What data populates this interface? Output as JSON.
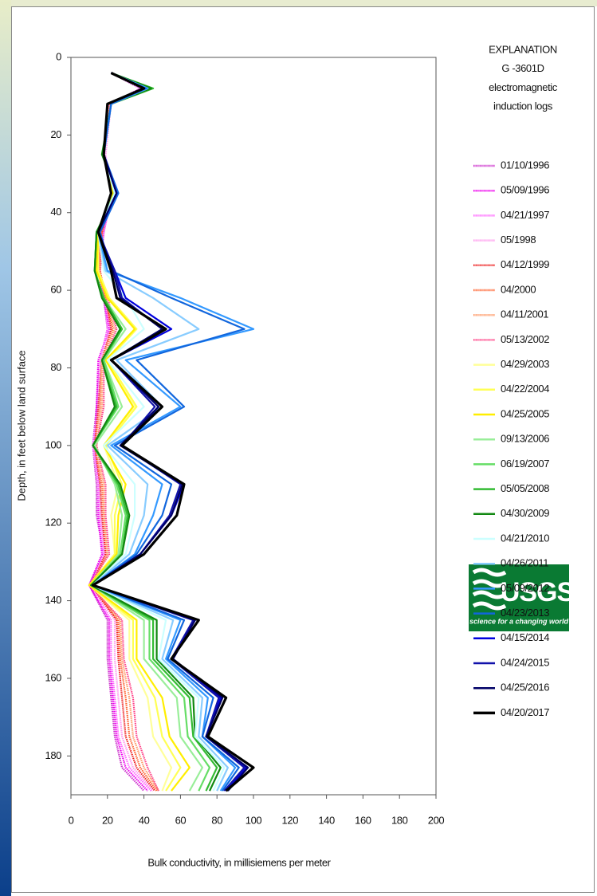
{
  "chart_data": {
    "type": "line",
    "x_label": "Bulk conductivity, in millisiemens per meter",
    "y_label": "Depth, in feet below land surface",
    "legend_title": [
      "EXPLANATION",
      "G -3601D",
      "electromagnetic",
      "induction logs"
    ],
    "xlim": [
      0,
      200
    ],
    "xticks": [
      0,
      20,
      40,
      60,
      80,
      100,
      120,
      140,
      160,
      180,
      200
    ],
    "ylim": [
      0,
      190
    ],
    "yticks": [
      0,
      20,
      40,
      60,
      80,
      100,
      120,
      140,
      160,
      180
    ],
    "invert_y": true,
    "y": [
      4,
      8,
      12,
      25,
      35,
      45,
      55,
      62,
      70,
      78,
      90,
      100,
      110,
      118,
      128,
      136,
      145,
      155,
      165,
      175,
      183,
      189
    ],
    "series": [
      {
        "name": "01/10/1996",
        "color": "#cc33cc",
        "style": "dotted",
        "values": [
          22,
          38,
          22,
          18,
          22,
          18,
          16,
          18,
          20,
          16,
          14,
          12,
          14,
          14,
          18,
          10,
          20,
          20,
          22,
          24,
          28,
          40
        ]
      },
      {
        "name": "05/09/1996",
        "color": "#ee00ee",
        "style": "dotted",
        "values": [
          22,
          40,
          22,
          18,
          22,
          17,
          15,
          18,
          21,
          15,
          14,
          13,
          15,
          15,
          17,
          10,
          21,
          21,
          23,
          25,
          30,
          42
        ]
      },
      {
        "name": "04/21/1997",
        "color": "#ff66ff",
        "style": "dotted",
        "values": [
          22,
          39,
          21,
          18,
          23,
          18,
          15,
          19,
          20,
          16,
          15,
          12,
          15,
          16,
          18,
          11,
          22,
          22,
          24,
          26,
          32,
          44
        ]
      },
      {
        "name": "05/1998",
        "color": "#ff99ee",
        "style": "dotted",
        "values": [
          22,
          40,
          22,
          19,
          22,
          17,
          16,
          18,
          22,
          16,
          15,
          13,
          16,
          16,
          19,
          11,
          24,
          24,
          26,
          28,
          34,
          45
        ]
      },
      {
        "name": "04/12/1999",
        "color": "#ee2222",
        "style": "dotted",
        "values": [
          22,
          41,
          22,
          18,
          22,
          17,
          15,
          19,
          22,
          17,
          15,
          13,
          16,
          17,
          19,
          11,
          25,
          26,
          28,
          30,
          36,
          46
        ]
      },
      {
        "name": "04/2000",
        "color": "#ff6633",
        "style": "dotted",
        "values": [
          22,
          40,
          22,
          18,
          23,
          17,
          16,
          19,
          23,
          17,
          16,
          13,
          17,
          18,
          20,
          11,
          26,
          27,
          30,
          32,
          38,
          47
        ]
      },
      {
        "name": "04/11/2001",
        "color": "#ff9966",
        "style": "dotted",
        "values": [
          22,
          41,
          21,
          18,
          22,
          16,
          15,
          19,
          24,
          17,
          17,
          14,
          18,
          18,
          20,
          11,
          27,
          28,
          32,
          34,
          40,
          48
        ]
      },
      {
        "name": "05/13/2002",
        "color": "#ff4488",
        "style": "dotted",
        "values": [
          22,
          42,
          22,
          18,
          23,
          16,
          15,
          20,
          25,
          18,
          18,
          14,
          19,
          19,
          21,
          10,
          28,
          29,
          34,
          36,
          42,
          48
        ]
      },
      {
        "name": "04/29/2003",
        "color": "#ffff99",
        "style": "solid",
        "values": [
          22,
          42,
          22,
          18,
          22,
          15,
          15,
          20,
          35,
          20,
          35,
          18,
          26,
          22,
          24,
          10,
          32,
          32,
          42,
          45,
          55,
          50
        ]
      },
      {
        "name": "04/22/2004",
        "color": "#ffff55",
        "style": "solid",
        "values": [
          22,
          42,
          22,
          18,
          22,
          15,
          15,
          21,
          36,
          20,
          36,
          19,
          28,
          24,
          24,
          10,
          34,
          34,
          46,
          50,
          60,
          52
        ]
      },
      {
        "name": "04/25/2005",
        "color": "#ffee00",
        "style": "solid",
        "values": [
          22,
          43,
          22,
          18,
          23,
          15,
          14,
          20,
          35,
          19,
          34,
          18,
          30,
          26,
          25,
          10,
          36,
          36,
          50,
          54,
          65,
          55
        ]
      },
      {
        "name": "09/13/2006",
        "color": "#99ee99",
        "style": "solid",
        "values": [
          22,
          44,
          22,
          18,
          24,
          14,
          13,
          18,
          30,
          18,
          28,
          13,
          24,
          28,
          26,
          11,
          40,
          40,
          58,
          60,
          72,
          65
        ]
      },
      {
        "name": "06/19/2007",
        "color": "#66dd66",
        "style": "solid",
        "values": [
          22,
          44,
          22,
          18,
          24,
          14,
          13,
          18,
          28,
          18,
          26,
          12,
          25,
          30,
          27,
          11,
          43,
          43,
          62,
          64,
          76,
          70
        ]
      },
      {
        "name": "05/05/2008",
        "color": "#33bb33",
        "style": "solid",
        "values": [
          22,
          45,
          22,
          18,
          25,
          14,
          13,
          18,
          28,
          17,
          25,
          12,
          26,
          31,
          28,
          11,
          45,
          45,
          65,
          67,
          80,
          74
        ]
      },
      {
        "name": "04/30/2009",
        "color": "#118811",
        "style": "solid",
        "values": [
          22,
          44,
          22,
          17,
          25,
          14,
          13,
          17,
          27,
          17,
          24,
          12,
          27,
          32,
          28,
          11,
          47,
          47,
          67,
          68,
          82,
          76
        ]
      },
      {
        "name": "04/21/2010",
        "color": "#ccffff",
        "style": "solid",
        "values": [
          22,
          42,
          22,
          18,
          24,
          15,
          18,
          30,
          40,
          20,
          40,
          18,
          35,
          35,
          30,
          12,
          52,
          48,
          70,
          68,
          84,
          78
        ]
      },
      {
        "name": "04/26/2011",
        "color": "#88ccff",
        "style": "solid",
        "values": [
          22,
          42,
          22,
          18,
          25,
          15,
          19,
          45,
          70,
          25,
          50,
          20,
          42,
          40,
          32,
          12,
          56,
          50,
          72,
          70,
          86,
          80
        ]
      },
      {
        "name": "05/09/2012",
        "color": "#3399ff",
        "style": "solid",
        "values": [
          22,
          42,
          22,
          18,
          25,
          15,
          20,
          60,
          100,
          30,
          60,
          22,
          50,
          45,
          35,
          12,
          60,
          52,
          75,
          72,
          90,
          82
        ]
      },
      {
        "name": "04/23/2013",
        "color": "#1166dd",
        "style": "solid",
        "values": [
          22,
          41,
          22,
          18,
          26,
          16,
          22,
          55,
          95,
          36,
          62,
          24,
          55,
          50,
          36,
          12,
          62,
          53,
          78,
          72,
          92,
          83
        ]
      },
      {
        "name": "04/15/2014",
        "color": "#0000dd",
        "style": "solid",
        "values": [
          22,
          40,
          20,
          18,
          25,
          15,
          24,
          30,
          55,
          22,
          48,
          28,
          62,
          55,
          38,
          12,
          68,
          55,
          82,
          74,
          96,
          85
        ]
      },
      {
        "name": "04/24/2015",
        "color": "#1111aa",
        "style": "solid",
        "values": [
          22,
          40,
          20,
          18,
          25,
          15,
          24,
          28,
          50,
          22,
          46,
          28,
          60,
          54,
          38,
          12,
          67,
          55,
          81,
          74,
          95,
          84
        ]
      },
      {
        "name": "04/25/2016",
        "color": "#000066",
        "style": "solid",
        "values": [
          22,
          40,
          20,
          18,
          25,
          15,
          23,
          27,
          50,
          22,
          48,
          27,
          61,
          55,
          38,
          12,
          68,
          56,
          83,
          74,
          97,
          86
        ]
      },
      {
        "name": "04/20/2017",
        "color": "#000000",
        "style": "solid",
        "values": [
          22,
          40,
          20,
          18,
          22,
          15,
          22,
          25,
          52,
          22,
          50,
          28,
          62,
          58,
          40,
          12,
          70,
          55,
          85,
          75,
          100,
          85
        ]
      }
    ]
  },
  "logo": {
    "name": "USGS",
    "tagline": "science for a changing world"
  }
}
